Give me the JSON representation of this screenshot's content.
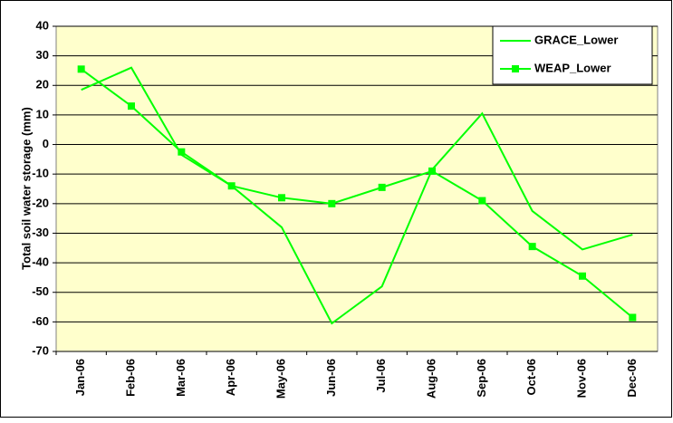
{
  "chart_data": {
    "type": "line",
    "y_label": "Total soil water storage (mm)",
    "categories": [
      "Jan-06",
      "Feb-06",
      "Mar-06",
      "Apr-06",
      "May-06",
      "Jun-06",
      "Jul-06",
      "Aug-06",
      "Sep-06",
      "Oct-06",
      "Nov-06",
      "Dec-06"
    ],
    "series": [
      {
        "name": "GRACE_Lower",
        "color": "#00ff00",
        "marker": false,
        "values": [
          18.5,
          26,
          -3.5,
          -14,
          -28,
          -60.5,
          -48,
          -8.5,
          10.5,
          -22.5,
          -35.5,
          -30.5
        ]
      },
      {
        "name": "WEAP_Lower",
        "color": "#00ff00",
        "marker": true,
        "values": [
          25.5,
          13,
          -2.5,
          -14,
          -18,
          -20,
          -14.5,
          -9,
          -19,
          -34.5,
          -44.5,
          -58.5
        ]
      }
    ],
    "ylim": [
      -70,
      40
    ],
    "yticks": [
      -70,
      -60,
      -50,
      -40,
      -30,
      -20,
      -10,
      0,
      10,
      20,
      30,
      40
    ],
    "grid": true,
    "legend": "top-right"
  }
}
